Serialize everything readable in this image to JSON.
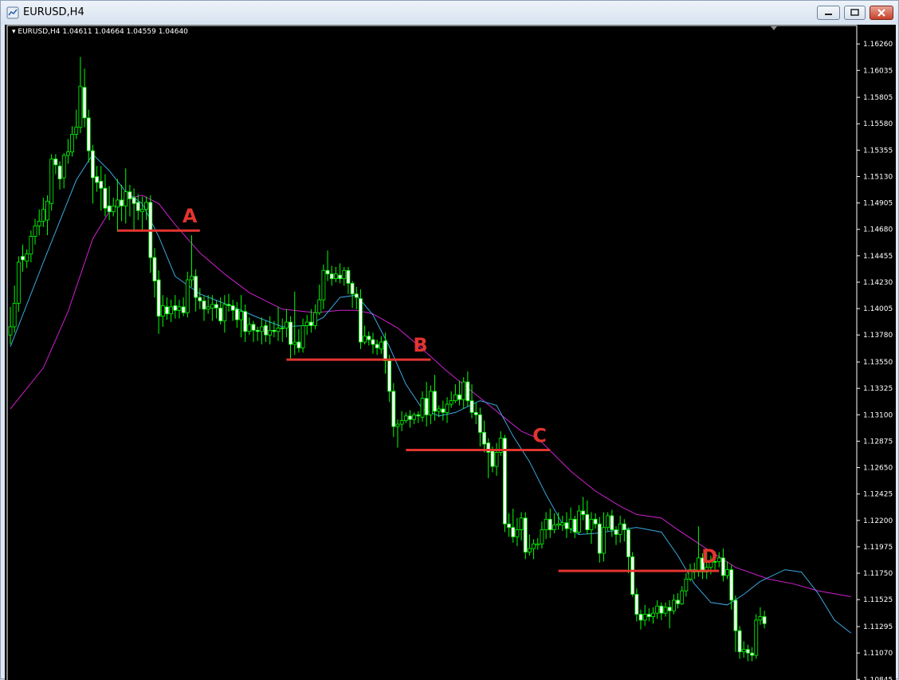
{
  "window": {
    "title": "EURUSD,H4",
    "buttons": {
      "minimize": "minimize",
      "maximize": "maximize",
      "close": "close"
    }
  },
  "chart_header": {
    "symbol": "EURUSD,H4",
    "open": "1.04611",
    "high": "1.04664",
    "low": "1.04559",
    "close": "1.04640"
  },
  "colors": {
    "background": "#000000",
    "axis": "#ffffff",
    "candle_up_body": "#ffffff",
    "candle_outline": "#00ff00",
    "candle_down_body": "#000000",
    "ma_fast": "#3aa8e0",
    "ma_slow": "#d020d0",
    "level_lines": "#e3342f",
    "level_labels": "#e3342f"
  },
  "chart_data": {
    "type": "candlestick",
    "symbol": "EURUSD",
    "timeframe": "H4",
    "grid": false,
    "ylim": [
      1.1084,
      1.1639
    ],
    "y_ticks": [
      "1.16260",
      "1.16035",
      "1.15805",
      "1.15580",
      "1.15355",
      "1.15130",
      "1.14905",
      "1.14680",
      "1.14455",
      "1.14230",
      "1.14005",
      "1.13780",
      "1.13550",
      "1.13325",
      "1.13100",
      "1.12875",
      "1.12650",
      "1.12425",
      "1.12200",
      "1.11975",
      "1.11750",
      "1.11525",
      "1.11295",
      "1.11070",
      "1.10845"
    ],
    "candles": [
      [
        1.1385,
        1.1378,
        1.1402,
        1.137
      ],
      [
        1.1405,
        1.1385,
        1.142,
        1.138
      ],
      [
        1.144,
        1.1405,
        1.1445,
        1.1398
      ],
      [
        1.1442,
        1.1445,
        1.1455,
        1.1432
      ],
      [
        1.1447,
        1.1441,
        1.1451,
        1.1435
      ],
      [
        1.1462,
        1.1447,
        1.1467,
        1.144
      ],
      [
        1.1471,
        1.1462,
        1.1477,
        1.1455
      ],
      [
        1.1475,
        1.1471,
        1.1485,
        1.1463
      ],
      [
        1.1485,
        1.1475,
        1.1495,
        1.147
      ],
      [
        1.1492,
        1.1476,
        1.1497,
        1.1463
      ],
      [
        1.1528,
        1.149,
        1.1532,
        1.1484
      ],
      [
        1.1523,
        1.1528,
        1.1532,
        1.1515
      ],
      [
        1.1511,
        1.1522,
        1.1526,
        1.1502
      ],
      [
        1.1531,
        1.1512,
        1.1533,
        1.1503
      ],
      [
        1.1534,
        1.1531,
        1.1545,
        1.1524
      ],
      [
        1.1549,
        1.1534,
        1.1556,
        1.153
      ],
      [
        1.1555,
        1.1549,
        1.157,
        1.1545
      ],
      [
        1.159,
        1.1555,
        1.1615,
        1.155
      ],
      [
        1.1563,
        1.1589,
        1.1605,
        1.1555
      ],
      [
        1.1535,
        1.1563,
        1.157,
        1.1525
      ],
      [
        1.1512,
        1.1535,
        1.154,
        1.149
      ],
      [
        1.1508,
        1.1513,
        1.1522,
        1.15
      ],
      [
        1.1503,
        1.1509,
        1.1522,
        1.1484
      ],
      [
        1.1486,
        1.1503,
        1.1515,
        1.1479
      ],
      [
        1.1483,
        1.1488,
        1.1505,
        1.1476
      ],
      [
        1.1488,
        1.1483,
        1.1495,
        1.1479
      ],
      [
        1.1493,
        1.1487,
        1.1511,
        1.1466
      ],
      [
        1.1488,
        1.1493,
        1.1506,
        1.1475
      ],
      [
        1.15,
        1.1488,
        1.152,
        1.1473
      ],
      [
        1.1494,
        1.15,
        1.1506,
        1.1479
      ],
      [
        1.149,
        1.1495,
        1.1503,
        1.1466
      ],
      [
        1.1484,
        1.1491,
        1.1498,
        1.1476
      ],
      [
        1.1485,
        1.1483,
        1.1496,
        1.1466
      ],
      [
        1.1491,
        1.1485,
        1.1496,
        1.1476
      ],
      [
        1.1444,
        1.1491,
        1.1497,
        1.1431
      ],
      [
        1.1424,
        1.1444,
        1.1452,
        1.141
      ],
      [
        1.1394,
        1.1425,
        1.1433,
        1.1379
      ],
      [
        1.1403,
        1.1394,
        1.1412,
        1.1385
      ],
      [
        1.1396,
        1.1402,
        1.141,
        1.1391
      ],
      [
        1.1402,
        1.1396,
        1.1408,
        1.1389
      ],
      [
        1.1399,
        1.1403,
        1.1412,
        1.1392
      ],
      [
        1.1402,
        1.1399,
        1.1408,
        1.1392
      ],
      [
        1.1397,
        1.1402,
        1.141,
        1.1394
      ],
      [
        1.1425,
        1.1397,
        1.1432,
        1.1393
      ],
      [
        1.1428,
        1.1425,
        1.1463,
        1.1419
      ],
      [
        1.141,
        1.1428,
        1.1434,
        1.1398
      ],
      [
        1.1407,
        1.141,
        1.1418,
        1.14
      ],
      [
        1.14,
        1.1407,
        1.1411,
        1.139
      ],
      [
        1.1402,
        1.14,
        1.1412,
        1.1396
      ],
      [
        1.1404,
        1.1401,
        1.1412,
        1.139
      ],
      [
        1.1401,
        1.1404,
        1.1407,
        1.1392
      ],
      [
        1.139,
        1.1401,
        1.141,
        1.1387
      ],
      [
        1.1404,
        1.139,
        1.1412,
        1.138
      ],
      [
        1.1403,
        1.1404,
        1.1413,
        1.1398
      ],
      [
        1.1399,
        1.1403,
        1.1408,
        1.139
      ],
      [
        1.1391,
        1.14,
        1.1406,
        1.1384
      ],
      [
        1.1398,
        1.1391,
        1.1412,
        1.1376
      ],
      [
        1.1381,
        1.1398,
        1.1404,
        1.1372
      ],
      [
        1.1387,
        1.1381,
        1.1393,
        1.1378
      ],
      [
        1.1382,
        1.1387,
        1.139,
        1.1372
      ],
      [
        1.1381,
        1.1382,
        1.1385,
        1.1373
      ],
      [
        1.1385,
        1.1381,
        1.1393,
        1.137
      ],
      [
        1.1378,
        1.1386,
        1.139,
        1.1372
      ],
      [
        1.1382,
        1.1378,
        1.1394,
        1.137
      ],
      [
        1.1381,
        1.1382,
        1.139,
        1.1376
      ],
      [
        1.1384,
        1.1381,
        1.1402,
        1.1373
      ],
      [
        1.1384,
        1.1384,
        1.1392,
        1.1372
      ],
      [
        1.1389,
        1.1384,
        1.14,
        1.1376
      ],
      [
        1.137,
        1.1389,
        1.1394,
        1.1358
      ],
      [
        1.1372,
        1.137,
        1.1415,
        1.1361
      ],
      [
        1.1367,
        1.1372,
        1.1383,
        1.1363
      ],
      [
        1.1386,
        1.1367,
        1.1392,
        1.1363
      ],
      [
        1.1389,
        1.1386,
        1.1395,
        1.1378
      ],
      [
        1.1386,
        1.1389,
        1.14,
        1.138
      ],
      [
        1.1397,
        1.1386,
        1.1404,
        1.1383
      ],
      [
        1.1408,
        1.1397,
        1.1421,
        1.1395
      ],
      [
        1.1433,
        1.1408,
        1.1438,
        1.14
      ],
      [
        1.143,
        1.1433,
        1.145,
        1.1424
      ],
      [
        1.1426,
        1.143,
        1.1437,
        1.142
      ],
      [
        1.143,
        1.1426,
        1.1436,
        1.1423
      ],
      [
        1.1426,
        1.1429,
        1.1439,
        1.1422
      ],
      [
        1.1433,
        1.1426,
        1.1436,
        1.142
      ],
      [
        1.1422,
        1.1433,
        1.1436,
        1.1413
      ],
      [
        1.1413,
        1.1422,
        1.1424,
        1.1401
      ],
      [
        1.141,
        1.1413,
        1.1419,
        1.14
      ],
      [
        1.1372,
        1.1409,
        1.1417,
        1.1366
      ],
      [
        1.1377,
        1.1372,
        1.1386,
        1.137
      ],
      [
        1.1374,
        1.1377,
        1.1381,
        1.1369
      ],
      [
        1.137,
        1.1374,
        1.138,
        1.1362
      ],
      [
        1.1367,
        1.137,
        1.1374,
        1.1361
      ],
      [
        1.1372,
        1.1366,
        1.1377,
        1.1362
      ],
      [
        1.1356,
        1.1373,
        1.138,
        1.1345
      ],
      [
        1.133,
        1.1356,
        1.1361,
        1.1321
      ],
      [
        1.13,
        1.133,
        1.1337,
        1.1291
      ],
      [
        1.1302,
        1.13,
        1.1306,
        1.1282
      ],
      [
        1.1305,
        1.1302,
        1.1313,
        1.1296
      ],
      [
        1.1309,
        1.1305,
        1.1312,
        1.1303
      ],
      [
        1.1306,
        1.1309,
        1.1314,
        1.1299
      ],
      [
        1.131,
        1.1306,
        1.1312,
        1.1302
      ],
      [
        1.1309,
        1.131,
        1.1313,
        1.1303
      ],
      [
        1.1324,
        1.1308,
        1.133,
        1.1304
      ],
      [
        1.131,
        1.1324,
        1.1338,
        1.13
      ],
      [
        1.133,
        1.131,
        1.1335,
        1.1302
      ],
      [
        1.1313,
        1.133,
        1.1344,
        1.1305
      ],
      [
        1.1315,
        1.1313,
        1.1318,
        1.1308
      ],
      [
        1.1312,
        1.1315,
        1.1322,
        1.1305
      ],
      [
        1.1319,
        1.1312,
        1.1325,
        1.1303
      ],
      [
        1.1322,
        1.1319,
        1.133,
        1.1316
      ],
      [
        1.1327,
        1.1322,
        1.1336,
        1.132
      ],
      [
        1.1323,
        1.1327,
        1.1339,
        1.1318
      ],
      [
        1.1338,
        1.1323,
        1.1342,
        1.1315
      ],
      [
        1.1322,
        1.1338,
        1.1347,
        1.1317
      ],
      [
        1.1312,
        1.1322,
        1.1336,
        1.1307
      ],
      [
        1.131,
        1.1312,
        1.132,
        1.1302
      ],
      [
        1.1295,
        1.131,
        1.1316,
        1.1283
      ],
      [
        1.1285,
        1.1295,
        1.1305,
        1.1278
      ],
      [
        1.1278,
        1.1286,
        1.129,
        1.1256
      ],
      [
        1.1266,
        1.1279,
        1.1283,
        1.1261
      ],
      [
        1.1278,
        1.1266,
        1.1286,
        1.1258
      ],
      [
        1.129,
        1.1278,
        1.1296,
        1.1275
      ],
      [
        1.1217,
        1.129,
        1.1293,
        1.121
      ],
      [
        1.1214,
        1.1217,
        1.1226,
        1.1206
      ],
      [
        1.1206,
        1.1214,
        1.123,
        1.1201
      ],
      [
        1.1212,
        1.1206,
        1.1222,
        1.1198
      ],
      [
        1.1222,
        1.1212,
        1.1227,
        1.1203
      ],
      [
        1.1193,
        1.1222,
        1.1227,
        1.1187
      ],
      [
        1.1196,
        1.1193,
        1.1208,
        1.119
      ],
      [
        1.12,
        1.1196,
        1.1204,
        1.1187
      ],
      [
        1.12,
        1.1199,
        1.1205,
        1.1195
      ],
      [
        1.1212,
        1.12,
        1.1219,
        1.1196
      ],
      [
        1.1221,
        1.1212,
        1.1227,
        1.1204
      ],
      [
        1.1212,
        1.1221,
        1.123,
        1.1205
      ],
      [
        1.1216,
        1.1212,
        1.1226,
        1.1209
      ],
      [
        1.1217,
        1.1216,
        1.1227,
        1.1212
      ],
      [
        1.1218,
        1.1216,
        1.1224,
        1.1211
      ],
      [
        1.1213,
        1.1218,
        1.1227,
        1.1205
      ],
      [
        1.1221,
        1.1213,
        1.1231,
        1.1209
      ],
      [
        1.121,
        1.1221,
        1.1224,
        1.1205
      ],
      [
        1.1228,
        1.121,
        1.1233,
        1.1208
      ],
      [
        1.1225,
        1.1228,
        1.124,
        1.122
      ],
      [
        1.1212,
        1.1225,
        1.1237,
        1.1208
      ],
      [
        1.1221,
        1.1212,
        1.1227,
        1.12
      ],
      [
        1.1217,
        1.1221,
        1.1226,
        1.1213
      ],
      [
        1.1192,
        1.1217,
        1.1223,
        1.1184
      ],
      [
        1.1214,
        1.1192,
        1.1227,
        1.1185
      ],
      [
        1.1224,
        1.1214,
        1.1227,
        1.1211
      ],
      [
        1.1212,
        1.1224,
        1.1229,
        1.1206
      ],
      [
        1.1208,
        1.1212,
        1.1215,
        1.1199
      ],
      [
        1.1217,
        1.1208,
        1.1224,
        1.1201
      ],
      [
        1.1212,
        1.1217,
        1.1221,
        1.1202
      ],
      [
        1.1189,
        1.1212,
        1.1214,
        1.1175
      ],
      [
        1.1157,
        1.1189,
        1.1193,
        1.1155
      ],
      [
        1.114,
        1.1157,
        1.1162,
        1.1134
      ],
      [
        1.1135,
        1.114,
        1.1144,
        1.1127
      ],
      [
        1.114,
        1.1135,
        1.1148,
        1.113
      ],
      [
        1.1138,
        1.114,
        1.1145,
        1.1134
      ],
      [
        1.1141,
        1.1138,
        1.1146,
        1.1132
      ],
      [
        1.1147,
        1.1141,
        1.1152,
        1.1136
      ],
      [
        1.1141,
        1.1147,
        1.115,
        1.1135
      ],
      [
        1.1146,
        1.1141,
        1.115,
        1.1138
      ],
      [
        1.1143,
        1.1146,
        1.1152,
        1.1128
      ],
      [
        1.1152,
        1.1143,
        1.1157,
        1.114
      ],
      [
        1.1149,
        1.1152,
        1.1158,
        1.1145
      ],
      [
        1.116,
        1.1149,
        1.1164,
        1.1148
      ],
      [
        1.117,
        1.116,
        1.1175,
        1.1155
      ],
      [
        1.1178,
        1.117,
        1.1183,
        1.1168
      ],
      [
        1.1176,
        1.1178,
        1.1184,
        1.117
      ],
      [
        1.1188,
        1.1176,
        1.1215,
        1.1172
      ],
      [
        1.1176,
        1.1188,
        1.1192,
        1.117
      ],
      [
        1.118,
        1.1176,
        1.1196,
        1.117
      ],
      [
        1.1185,
        1.118,
        1.119,
        1.1174
      ],
      [
        1.1185,
        1.1185,
        1.1193,
        1.1178
      ],
      [
        1.1188,
        1.1185,
        1.1193,
        1.118
      ],
      [
        1.1173,
        1.1188,
        1.1196,
        1.1168
      ],
      [
        1.1178,
        1.1173,
        1.1185,
        1.117
      ],
      [
        1.1152,
        1.1178,
        1.1182,
        1.1144
      ],
      [
        1.1126,
        1.1152,
        1.1156,
        1.1108
      ],
      [
        1.1108,
        1.1126,
        1.113,
        1.1102
      ],
      [
        1.111,
        1.1108,
        1.1117,
        1.1103
      ],
      [
        1.1107,
        1.111,
        1.1114,
        1.11
      ],
      [
        1.1105,
        1.1107,
        1.1112,
        1.11
      ],
      [
        1.1135,
        1.1105,
        1.114,
        1.1102
      ],
      [
        1.1138,
        1.1135,
        1.1146,
        1.1131
      ],
      [
        1.1132,
        1.1138,
        1.1143,
        1.1128
      ]
    ],
    "ma_fast_label": "",
    "ma_fast": [
      [
        0,
        1.1368
      ],
      [
        8,
        1.144
      ],
      [
        16,
        1.151
      ],
      [
        20,
        1.1532
      ],
      [
        24,
        1.1518
      ],
      [
        28,
        1.15
      ],
      [
        32,
        1.149
      ],
      [
        36,
        1.1462
      ],
      [
        40,
        1.1428
      ],
      [
        46,
        1.1413
      ],
      [
        54,
        1.1402
      ],
      [
        60,
        1.1393
      ],
      [
        66,
        1.1385
      ],
      [
        72,
        1.1386
      ],
      [
        76,
        1.1393
      ],
      [
        80,
        1.141
      ],
      [
        84,
        1.1412
      ],
      [
        88,
        1.1395
      ],
      [
        92,
        1.1368
      ],
      [
        96,
        1.1336
      ],
      [
        100,
        1.1315
      ],
      [
        104,
        1.1309
      ],
      [
        108,
        1.1312
      ],
      [
        114,
        1.1322
      ],
      [
        118,
        1.1318
      ],
      [
        122,
        1.1292
      ],
      [
        126,
        1.127
      ],
      [
        130,
        1.1242
      ],
      [
        134,
        1.1217
      ],
      [
        138,
        1.1208
      ],
      [
        142,
        1.1209
      ],
      [
        148,
        1.1212
      ],
      [
        152,
        1.1214
      ],
      [
        158,
        1.121
      ],
      [
        162,
        1.119
      ],
      [
        166,
        1.1166
      ],
      [
        170,
        1.115
      ],
      [
        174,
        1.1148
      ],
      [
        178,
        1.1157
      ],
      [
        182,
        1.1168
      ],
      [
        188,
        1.1178
      ],
      [
        192,
        1.1176
      ],
      [
        196,
        1.1158
      ],
      [
        200,
        1.1135
      ],
      [
        204,
        1.1124
      ]
    ],
    "ma_slow_label": "",
    "ma_slow": [
      [
        0,
        1.1315
      ],
      [
        8,
        1.135
      ],
      [
        14,
        1.1398
      ],
      [
        20,
        1.146
      ],
      [
        24,
        1.1483
      ],
      [
        28,
        1.1494
      ],
      [
        32,
        1.1497
      ],
      [
        36,
        1.149
      ],
      [
        40,
        1.1472
      ],
      [
        46,
        1.1448
      ],
      [
        52,
        1.143
      ],
      [
        58,
        1.1414
      ],
      [
        66,
        1.14
      ],
      [
        74,
        1.1397
      ],
      [
        80,
        1.1399
      ],
      [
        84,
        1.1399
      ],
      [
        88,
        1.1396
      ],
      [
        94,
        1.1384
      ],
      [
        100,
        1.1366
      ],
      [
        106,
        1.1347
      ],
      [
        112,
        1.133
      ],
      [
        118,
        1.1313
      ],
      [
        124,
        1.1296
      ],
      [
        128,
        1.129
      ],
      [
        132,
        1.1276
      ],
      [
        136,
        1.1262
      ],
      [
        142,
        1.1245
      ],
      [
        148,
        1.1232
      ],
      [
        152,
        1.1225
      ],
      [
        158,
        1.1222
      ],
      [
        162,
        1.1212
      ],
      [
        168,
        1.1198
      ],
      [
        176,
        1.118
      ],
      [
        184,
        1.117
      ],
      [
        190,
        1.1166
      ],
      [
        196,
        1.116
      ],
      [
        204,
        1.1155
      ]
    ],
    "levels": [
      {
        "label": "A",
        "price": 1.1467,
        "x_start": 26,
        "x_end": 46
      },
      {
        "label": "B",
        "price": 1.1357,
        "x_start": 67,
        "x_end": 102
      },
      {
        "label": "C",
        "price": 1.128,
        "x_start": 96,
        "x_end": 131
      },
      {
        "label": "D",
        "price": 1.1177,
        "x_start": 133,
        "x_end": 172
      }
    ]
  }
}
